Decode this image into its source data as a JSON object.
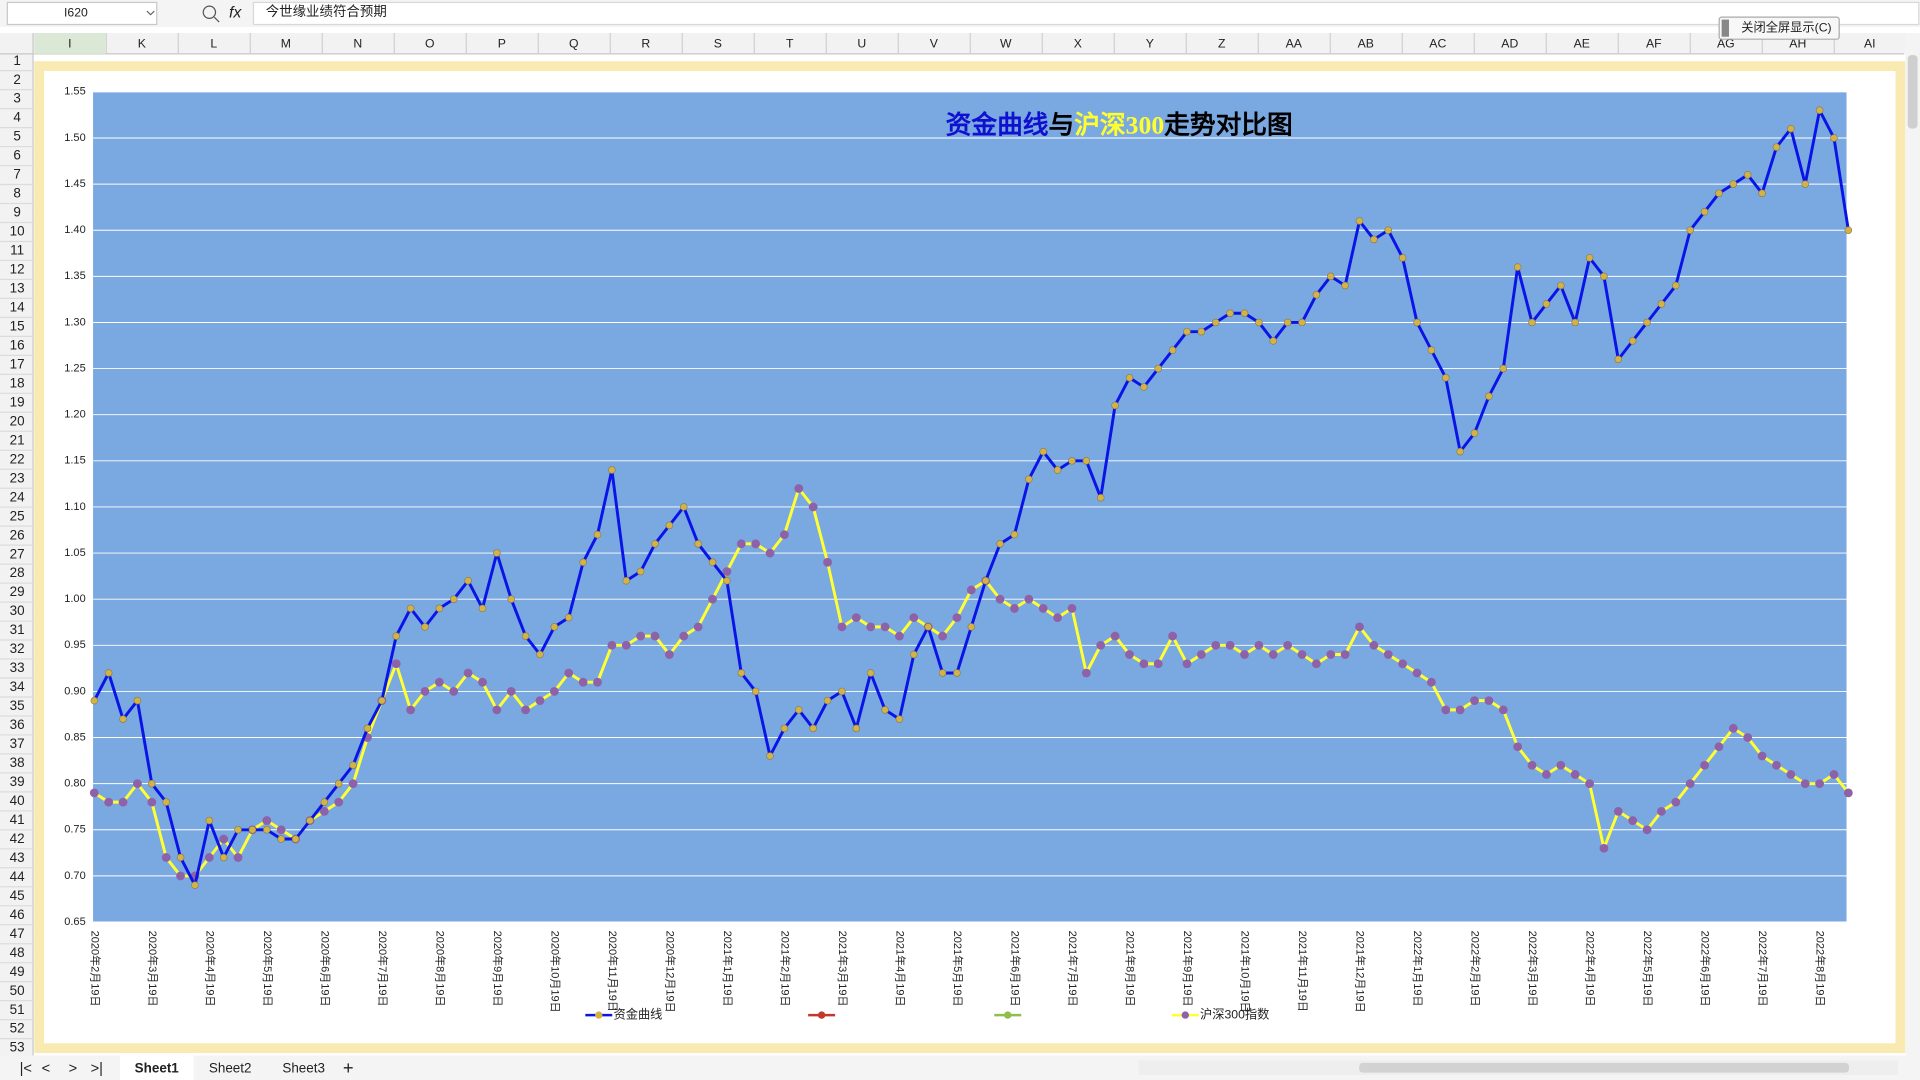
{
  "toolbar": {
    "name_box": "I620",
    "formula": "今世缘业绩符合预期"
  },
  "button": "关闭全屏显示(C)",
  "sheet": {
    "columns": [
      "I",
      "K",
      "L",
      "M",
      "N",
      "O",
      "P",
      "Q",
      "R",
      "S",
      "T",
      "U",
      "V",
      "W",
      "X",
      "Y",
      "Z",
      "AA",
      "AB",
      "AC",
      "AD",
      "AE",
      "AF",
      "AG",
      "AH",
      "AI"
    ],
    "rows": [
      1,
      2,
      3,
      4,
      5,
      6,
      7,
      8,
      9,
      10,
      11,
      12,
      13,
      14,
      15,
      16,
      17,
      18,
      19,
      20,
      21,
      22,
      23,
      24,
      25,
      26,
      27,
      28,
      29,
      30,
      31,
      32,
      33,
      34,
      35,
      36,
      37,
      38,
      39,
      40,
      41,
      42,
      43,
      44,
      45,
      46,
      47,
      48,
      49,
      50,
      51,
      52,
      53
    ],
    "tabs": [
      "Sheet1",
      "Sheet2",
      "Sheet3"
    ]
  },
  "chart_data": {
    "type": "line",
    "title_parts": [
      {
        "text": "资金曲线",
        "color": "#1010d0"
      },
      {
        "text": "与",
        "color": "#000000"
      },
      {
        "text": "沪深300",
        "color": "#ffff30"
      },
      {
        "text": "走势对比图",
        "color": "#000000"
      }
    ],
    "categories": [
      "2020年2月19日",
      null,
      null,
      null,
      "2020年3月19日",
      null,
      null,
      null,
      "2020年4月19日",
      null,
      null,
      null,
      "2020年5月19日",
      null,
      null,
      null,
      "2020年6月19日",
      null,
      null,
      null,
      "2020年7月19日",
      null,
      null,
      null,
      "2020年8月19日",
      null,
      null,
      null,
      "2020年9月19日",
      null,
      null,
      null,
      "2020年10月19日",
      null,
      null,
      null,
      "2020年11月19日",
      null,
      null,
      null,
      "2020年12月19日",
      null,
      null,
      null,
      "2021年1月19日",
      null,
      null,
      null,
      "2021年2月19日",
      null,
      null,
      null,
      "2021年3月19日",
      null,
      null,
      null,
      "2021年4月19日",
      null,
      null,
      null,
      "2021年5月19日",
      null,
      null,
      null,
      "2021年6月19日",
      null,
      null,
      null,
      "2021年7月19日",
      null,
      null,
      null,
      "2021年8月19日",
      null,
      null,
      null,
      "2021年9月19日",
      null,
      null,
      null,
      "2021年10月19日",
      null,
      null,
      null,
      "2021年11月19日",
      null,
      null,
      null,
      "2021年12月19日",
      null,
      null,
      null,
      "2022年1月19日",
      null,
      null,
      null,
      "2022年2月19日",
      null,
      null,
      null,
      "2022年3月19日",
      null,
      null,
      null,
      "2022年4月19日",
      null,
      null,
      null,
      "2022年5月19日",
      null,
      null,
      null,
      "2022年6月19日",
      null,
      null,
      null,
      "2022年7月19日",
      null,
      null,
      null,
      "2022年8月19日",
      null,
      null
    ],
    "series": [
      {
        "name": "资金曲线",
        "color": "#0a14e6",
        "marker_color": "#d4b24a",
        "values": [
          0.89,
          0.92,
          0.87,
          0.89,
          0.8,
          0.78,
          0.72,
          0.69,
          0.76,
          0.72,
          0.75,
          0.75,
          0.75,
          0.74,
          0.74,
          0.76,
          0.78,
          0.8,
          0.82,
          0.86,
          0.89,
          0.96,
          0.99,
          0.97,
          0.99,
          1.0,
          1.02,
          0.99,
          1.05,
          1.0,
          0.96,
          0.94,
          0.97,
          0.98,
          1.04,
          1.07,
          1.14,
          1.02,
          1.03,
          1.06,
          1.08,
          1.1,
          1.06,
          1.04,
          1.02,
          0.92,
          0.9,
          0.83,
          0.86,
          0.88,
          0.86,
          0.89,
          0.9,
          0.86,
          0.92,
          0.88,
          0.87,
          0.94,
          0.97,
          0.92,
          0.92,
          0.97,
          1.02,
          1.06,
          1.07,
          1.13,
          1.16,
          1.14,
          1.15,
          1.15,
          1.11,
          1.21,
          1.24,
          1.23,
          1.25,
          1.27,
          1.29,
          1.29,
          1.3,
          1.31,
          1.31,
          1.3,
          1.28,
          1.3,
          1.3,
          1.33,
          1.35,
          1.34,
          1.41,
          1.39,
          1.4,
          1.37,
          1.3,
          1.27,
          1.24,
          1.16,
          1.18,
          1.22,
          1.25,
          1.36,
          1.3,
          1.32,
          1.34,
          1.3,
          1.37,
          1.35,
          1.26,
          1.28,
          1.3,
          1.32,
          1.34,
          1.4,
          1.42,
          1.44,
          1.45,
          1.46,
          1.44,
          1.49,
          1.51,
          1.45,
          1.53,
          1.5,
          1.4
        ]
      },
      {
        "name": "沪深300指数",
        "color": "#ffff33",
        "marker_color": "#8e62a8",
        "values": [
          0.79,
          0.78,
          0.78,
          0.8,
          0.78,
          0.72,
          0.7,
          0.7,
          0.72,
          0.74,
          0.72,
          0.75,
          0.76,
          0.75,
          0.74,
          0.76,
          0.77,
          0.78,
          0.8,
          0.85,
          0.89,
          0.93,
          0.88,
          0.9,
          0.91,
          0.9,
          0.92,
          0.91,
          0.88,
          0.9,
          0.88,
          0.89,
          0.9,
          0.92,
          0.91,
          0.91,
          0.95,
          0.95,
          0.96,
          0.96,
          0.94,
          0.96,
          0.97,
          1.0,
          1.03,
          1.06,
          1.06,
          1.05,
          1.07,
          1.12,
          1.1,
          1.04,
          0.97,
          0.98,
          0.97,
          0.97,
          0.96,
          0.98,
          0.97,
          0.96,
          0.98,
          1.01,
          1.02,
          1.0,
          0.99,
          1.0,
          0.99,
          0.98,
          0.99,
          0.92,
          0.95,
          0.96,
          0.94,
          0.93,
          0.93,
          0.96,
          0.93,
          0.94,
          0.95,
          0.95,
          0.94,
          0.95,
          0.94,
          0.95,
          0.94,
          0.93,
          0.94,
          0.94,
          0.97,
          0.95,
          0.94,
          0.93,
          0.92,
          0.91,
          0.88,
          0.88,
          0.89,
          0.89,
          0.88,
          0.84,
          0.82,
          0.81,
          0.82,
          0.81,
          0.8,
          0.73,
          0.77,
          0.76,
          0.75,
          0.77,
          0.78,
          0.8,
          0.82,
          0.84,
          0.86,
          0.85,
          0.83,
          0.82,
          0.81,
          0.8,
          0.8,
          0.81,
          0.79
        ]
      }
    ],
    "ylim": [
      0.65,
      1.55
    ],
    "yticks": [
      {
        "value": 0.65,
        "label": "0.65"
      },
      {
        "value": 0.7,
        "label": "0.70"
      },
      {
        "value": 0.75,
        "label": "0.75"
      },
      {
        "value": 0.8,
        "label": "0.80"
      },
      {
        "value": 0.85,
        "label": "0.85"
      },
      {
        "value": 0.9,
        "label": "0.90"
      },
      {
        "value": 0.95,
        "label": "0.95"
      },
      {
        "value": 1,
        "label": "1.00"
      },
      {
        "value": 1.05,
        "label": "1.05"
      },
      {
        "value": 1.1,
        "label": "1.10"
      },
      {
        "value": 1.15,
        "label": "1.15"
      },
      {
        "value": 1.2,
        "label": "1.20"
      },
      {
        "value": 1.25,
        "label": "1.25"
      },
      {
        "value": 1.3,
        "label": "1.30"
      },
      {
        "value": 1.35,
        "label": "1.35"
      },
      {
        "value": 1.4,
        "label": "1.40"
      },
      {
        "value": 1.45,
        "label": "1.45"
      },
      {
        "value": 1.5,
        "label": "1.50"
      },
      {
        "value": 1.55,
        "label": "1.55"
      }
    ],
    "grid": true,
    "plot_color": "#7aa8e0",
    "legend": "bottom"
  }
}
